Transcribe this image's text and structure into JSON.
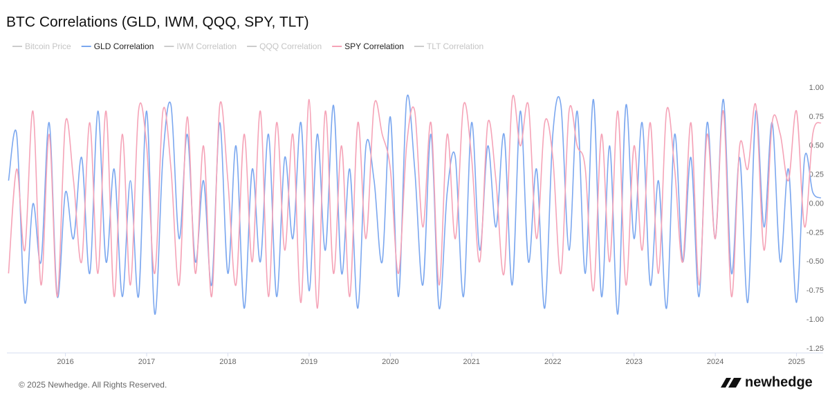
{
  "chart_data": {
    "type": "line",
    "title": "BTC Correlations (GLD, IWM, QQQ, SPY, TLT)",
    "footer": "© 2025 Newhedge. All Rights Reserved.",
    "brand": "newhedge",
    "xlim": [
      2015.28,
      2025.31
    ],
    "xticks": [
      2016,
      2017,
      2018,
      2019,
      2020,
      2021,
      2022,
      2023,
      2024,
      2025
    ],
    "ylim": [
      -1.25,
      1.0
    ],
    "yticks": [
      {
        "value": 1.0,
        "label": "1.00"
      },
      {
        "value": 0.75,
        "label": "0.75"
      },
      {
        "value": 0.5,
        "label": "0.50"
      },
      {
        "value": 0.25,
        "label": "0.25"
      },
      {
        "value": 0,
        "label": "0.00"
      },
      {
        "value": -0.25,
        "label": "-0.25"
      },
      {
        "value": -0.5,
        "label": "-0.50"
      },
      {
        "value": -0.75,
        "label": "-0.75"
      },
      {
        "value": -1.0,
        "label": "-1.00"
      },
      {
        "value": -1.25,
        "label": "-1.25"
      }
    ],
    "legend": "top-left",
    "x": [
      2015.3,
      2015.4,
      2015.5,
      2015.6,
      2015.7,
      2015.8,
      2015.9,
      2016.0,
      2016.1,
      2016.2,
      2016.3,
      2016.4,
      2016.5,
      2016.6,
      2016.7,
      2016.8,
      2016.9,
      2017.0,
      2017.1,
      2017.2,
      2017.3,
      2017.4,
      2017.5,
      2017.6,
      2017.7,
      2017.8,
      2017.9,
      2018.0,
      2018.1,
      2018.2,
      2018.3,
      2018.4,
      2018.5,
      2018.6,
      2018.7,
      2018.8,
      2018.9,
      2019.0,
      2019.1,
      2019.2,
      2019.3,
      2019.4,
      2019.5,
      2019.6,
      2019.7,
      2019.8,
      2019.9,
      2020.0,
      2020.1,
      2020.2,
      2020.3,
      2020.4,
      2020.5,
      2020.6,
      2020.7,
      2020.8,
      2020.9,
      2021.0,
      2021.1,
      2021.2,
      2021.3,
      2021.4,
      2021.5,
      2021.6,
      2021.7,
      2021.8,
      2021.9,
      2022.0,
      2022.1,
      2022.2,
      2022.3,
      2022.4,
      2022.5,
      2022.6,
      2022.7,
      2022.8,
      2022.9,
      2023.0,
      2023.1,
      2023.2,
      2023.3,
      2023.4,
      2023.5,
      2023.6,
      2023.7,
      2023.8,
      2023.9,
      2024.0,
      2024.1,
      2024.2,
      2024.3,
      2024.4,
      2024.5,
      2024.6,
      2024.7,
      2024.8,
      2024.9,
      2025.0,
      2025.1,
      2025.2,
      2025.3
    ],
    "series": [
      {
        "name": "Bitcoin Price",
        "color": "#cccccc",
        "hidden": true
      },
      {
        "name": "GLD Correlation",
        "color": "#7ba7ef",
        "values": [
          0.2,
          0.6,
          -0.85,
          0.0,
          -0.5,
          0.7,
          -0.8,
          0.1,
          -0.3,
          0.4,
          -0.6,
          0.8,
          -0.5,
          0.3,
          -0.8,
          0.2,
          -0.8,
          0.8,
          -0.95,
          0.4,
          0.85,
          -0.3,
          0.6,
          -0.5,
          0.2,
          -0.7,
          0.7,
          -0.6,
          0.5,
          -0.9,
          0.3,
          -0.5,
          0.6,
          -0.8,
          0.4,
          -0.3,
          0.7,
          -0.75,
          0.6,
          -0.4,
          0.85,
          -0.6,
          0.3,
          -0.9,
          0.5,
          0.2,
          -0.5,
          0.75,
          -0.8,
          0.9,
          0.3,
          -0.7,
          0.6,
          -0.9,
          0.1,
          0.4,
          -0.8,
          0.7,
          -0.4,
          0.5,
          -0.2,
          0.6,
          -0.7,
          0.8,
          -0.5,
          0.3,
          -0.9,
          0.6,
          0.85,
          -0.4,
          0.8,
          -0.6,
          0.9,
          -0.8,
          0.5,
          -0.95,
          0.85,
          -0.3,
          0.7,
          -0.7,
          0.2,
          -0.9,
          0.6,
          -0.5,
          0.4,
          -0.8,
          0.7,
          -0.3,
          0.9,
          -0.6,
          0.4,
          -0.85,
          0.8,
          -0.2,
          0.7,
          -0.5,
          0.3,
          -0.85,
          0.4,
          0.1,
          0.05
        ]
      },
      {
        "name": "IWM Correlation",
        "color": "#cccccc",
        "hidden": true
      },
      {
        "name": "QQQ Correlation",
        "color": "#cccccc",
        "hidden": true
      },
      {
        "name": "SPY Correlation",
        "color": "#f5a3b7",
        "values": [
          -0.6,
          0.3,
          -0.4,
          0.8,
          -0.7,
          0.6,
          -0.8,
          0.7,
          0.2,
          -0.5,
          0.7,
          -0.6,
          0.8,
          -0.8,
          0.6,
          -0.7,
          0.8,
          0.5,
          -0.6,
          0.8,
          0.3,
          -0.7,
          0.75,
          -0.6,
          0.5,
          -0.8,
          0.85,
          0.2,
          -0.7,
          0.6,
          -0.5,
          0.8,
          -0.8,
          0.7,
          -0.4,
          0.6,
          -0.85,
          0.9,
          -0.9,
          0.8,
          -0.6,
          0.5,
          -0.8,
          0.7,
          -0.3,
          0.85,
          0.6,
          0.3,
          -0.6,
          0.5,
          0.8,
          -0.2,
          0.7,
          -0.7,
          0.6,
          -0.3,
          0.85,
          0.4,
          -0.5,
          0.7,
          0.2,
          -0.6,
          0.9,
          0.5,
          0.85,
          -0.3,
          0.7,
          0.4,
          -0.6,
          0.8,
          0.5,
          0.3,
          -0.75,
          0.6,
          -0.5,
          0.8,
          -0.7,
          0.5,
          -0.4,
          0.7,
          -0.6,
          0.8,
          0.3,
          -0.5,
          0.7,
          -0.7,
          0.6,
          -0.3,
          0.8,
          -0.8,
          0.5,
          0.3,
          0.85,
          -0.4,
          0.7,
          0.6,
          0.2,
          0.8,
          -0.2,
          0.6,
          0.7
        ]
      },
      {
        "name": "TLT Correlation",
        "color": "#cccccc",
        "hidden": true
      }
    ]
  }
}
